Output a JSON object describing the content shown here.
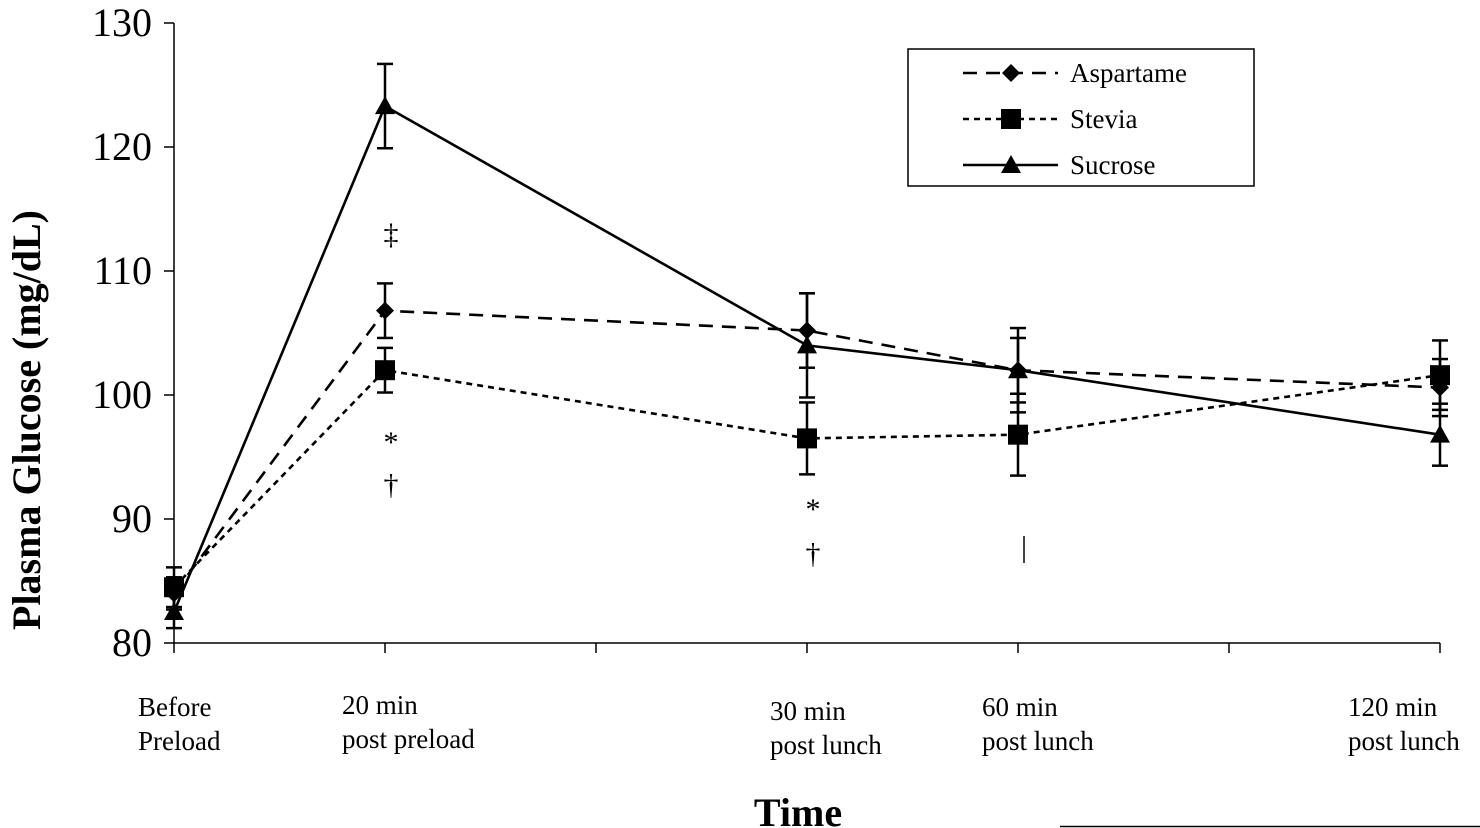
{
  "chart_data": {
    "type": "line",
    "title": "",
    "xlabel": "Time",
    "ylabel": "Plasma Glucose (mg/dL)",
    "ylim": [
      80,
      130
    ],
    "yticks": [
      "80",
      "90",
      "100",
      "110",
      "120",
      "130"
    ],
    "categories": [
      {
        "line1": "Before",
        "line2": "Preload",
        "pos": 0
      },
      {
        "line1": "20 min",
        "line2": "post preload",
        "pos": 1
      },
      {
        "line1": "30 min",
        "line2": "post lunch",
        "pos": 3
      },
      {
        "line1": "60 min",
        "line2": "post lunch",
        "pos": 4
      },
      {
        "line1": "120 min",
        "line2": "post lunch",
        "pos": 6
      }
    ],
    "x_positions": [
      0,
      1,
      3,
      4,
      6
    ],
    "x_range": [
      0,
      6
    ],
    "series": [
      {
        "name": "Aspartame",
        "marker": "diamond",
        "line": "dashed",
        "values": [
          84.0,
          106.8,
          105.2,
          102.0,
          100.6
        ],
        "errors": [
          1.3,
          2.2,
          3.0,
          2.6,
          2.3
        ]
      },
      {
        "name": "Stevia",
        "marker": "square",
        "line": "dotted",
        "values": [
          84.5,
          102.0,
          96.5,
          96.8,
          101.6
        ],
        "errors": [
          1.6,
          1.8,
          2.9,
          3.3,
          2.8
        ]
      },
      {
        "name": "Sucrose",
        "marker": "triangle",
        "line": "solid",
        "values": [
          82.5,
          123.3,
          104.0,
          102.0,
          96.8
        ],
        "errors": [
          1.3,
          3.4,
          4.2,
          3.4,
          2.5
        ]
      }
    ],
    "annotations": [
      {
        "text": "‡",
        "x": 1,
        "y": 113.0
      },
      {
        "text": "*",
        "x": 1,
        "y": 96.2
      },
      {
        "text": "†",
        "x": 1,
        "y": 92.8
      },
      {
        "text": "*",
        "x": 3,
        "y": 90.8
      },
      {
        "text": "†",
        "x": 3,
        "y": 87.2
      },
      {
        "text": "|",
        "x": 4,
        "y": 87.8
      }
    ],
    "legend": {
      "placement": "top-right"
    },
    "grid": false,
    "colors": {
      "line": "#000000",
      "background": "#ffffff"
    }
  }
}
